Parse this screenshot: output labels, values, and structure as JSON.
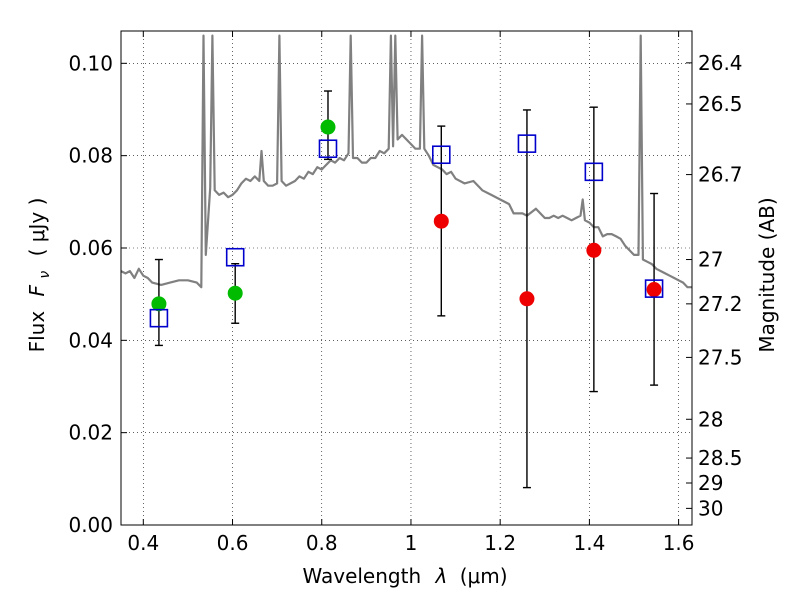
{
  "chart_data": {
    "type": "scatter",
    "xlabel": "Wavelength",
    "xlabel_symbol": "λ",
    "xlabel_unit": "(μm)",
    "ylabel": "Flux",
    "ylabel_symbol": "F",
    "ylabel_subscript": "ν",
    "ylabel_unit": "( μJy )",
    "y2label": "Magnitude (AB)",
    "xlim": [
      0.35,
      1.63
    ],
    "ylim": [
      0.0,
      0.107
    ],
    "grid": true,
    "x_ticks": [
      0.4,
      0.6,
      0.8,
      1.0,
      1.2,
      1.4,
      1.6
    ],
    "x_tick_labels": [
      "0.4",
      "0.6",
      "0.8",
      "1",
      "1.2",
      "1.4",
      "1.6"
    ],
    "y_ticks": [
      0.0,
      0.02,
      0.04,
      0.06,
      0.08,
      0.1
    ],
    "y_tick_labels": [
      "0.00",
      "0.02",
      "0.04",
      "0.06",
      "0.08",
      "0.10"
    ],
    "mag_ticks": [
      {
        "label": "26.4",
        "flux": 0.1001
      },
      {
        "label": "26.5",
        "flux": 0.0912
      },
      {
        "label": "26.7",
        "flux": 0.0759
      },
      {
        "label": "27",
        "flux": 0.0575
      },
      {
        "label": "27.2",
        "flux": 0.0479
      },
      {
        "label": "27.5",
        "flux": 0.0363
      },
      {
        "label": "28",
        "flux": 0.0229
      },
      {
        "label": "28.5",
        "flux": 0.0145
      },
      {
        "label": "29",
        "flux": 0.0091
      },
      {
        "label": "30",
        "flux": 0.0036
      }
    ],
    "model_spectrum": {
      "color": "#808080",
      "points": [
        [
          0.35,
          0.055
        ],
        [
          0.36,
          0.0545
        ],
        [
          0.37,
          0.055
        ],
        [
          0.38,
          0.0535
        ],
        [
          0.39,
          0.0555
        ],
        [
          0.4,
          0.054
        ],
        [
          0.41,
          0.0535
        ],
        [
          0.42,
          0.0525
        ],
        [
          0.44,
          0.052
        ],
        [
          0.46,
          0.0525
        ],
        [
          0.48,
          0.053
        ],
        [
          0.5,
          0.053
        ],
        [
          0.52,
          0.0525
        ],
        [
          0.53,
          0.0515
        ],
        [
          0.535,
          0.106
        ],
        [
          0.54,
          0.0585
        ],
        [
          0.55,
          0.073
        ],
        [
          0.555,
          0.106
        ],
        [
          0.56,
          0.0725
        ],
        [
          0.57,
          0.0715
        ],
        [
          0.58,
          0.072
        ],
        [
          0.59,
          0.071
        ],
        [
          0.6,
          0.0715
        ],
        [
          0.61,
          0.0725
        ],
        [
          0.62,
          0.074
        ],
        [
          0.63,
          0.075
        ],
        [
          0.64,
          0.0745
        ],
        [
          0.65,
          0.0755
        ],
        [
          0.66,
          0.0745
        ],
        [
          0.665,
          0.081
        ],
        [
          0.67,
          0.0745
        ],
        [
          0.68,
          0.0735
        ],
        [
          0.69,
          0.0735
        ],
        [
          0.7,
          0.074
        ],
        [
          0.705,
          0.106
        ],
        [
          0.71,
          0.0745
        ],
        [
          0.72,
          0.0735
        ],
        [
          0.73,
          0.074
        ],
        [
          0.74,
          0.0745
        ],
        [
          0.75,
          0.0755
        ],
        [
          0.76,
          0.075
        ],
        [
          0.77,
          0.0765
        ],
        [
          0.78,
          0.076
        ],
        [
          0.79,
          0.0775
        ],
        [
          0.8,
          0.077
        ],
        [
          0.81,
          0.078
        ],
        [
          0.82,
          0.079
        ],
        [
          0.83,
          0.0785
        ],
        [
          0.84,
          0.0795
        ],
        [
          0.85,
          0.079
        ],
        [
          0.86,
          0.0805
        ],
        [
          0.865,
          0.106
        ],
        [
          0.87,
          0.0795
        ],
        [
          0.88,
          0.0795
        ],
        [
          0.89,
          0.0785
        ],
        [
          0.9,
          0.0785
        ],
        [
          0.91,
          0.0795
        ],
        [
          0.92,
          0.0795
        ],
        [
          0.93,
          0.081
        ],
        [
          0.94,
          0.0805
        ],
        [
          0.95,
          0.0815
        ],
        [
          0.955,
          0.106
        ],
        [
          0.96,
          0.082
        ],
        [
          0.965,
          0.106
        ],
        [
          0.97,
          0.0835
        ],
        [
          0.98,
          0.0845
        ],
        [
          0.99,
          0.0835
        ],
        [
          1.0,
          0.0825
        ],
        [
          1.01,
          0.0815
        ],
        [
          1.02,
          0.0815
        ],
        [
          1.025,
          0.106
        ],
        [
          1.03,
          0.0815
        ],
        [
          1.04,
          0.08
        ],
        [
          1.05,
          0.078
        ],
        [
          1.06,
          0.0775
        ],
        [
          1.07,
          0.077
        ],
        [
          1.08,
          0.076
        ],
        [
          1.09,
          0.0765
        ],
        [
          1.1,
          0.075
        ],
        [
          1.12,
          0.074
        ],
        [
          1.14,
          0.0745
        ],
        [
          1.16,
          0.0725
        ],
        [
          1.18,
          0.0715
        ],
        [
          1.2,
          0.0705
        ],
        [
          1.22,
          0.0695
        ],
        [
          1.23,
          0.0675
        ],
        [
          1.25,
          0.0675
        ],
        [
          1.26,
          0.067
        ],
        [
          1.28,
          0.0685
        ],
        [
          1.3,
          0.0665
        ],
        [
          1.31,
          0.0665
        ],
        [
          1.32,
          0.067
        ],
        [
          1.33,
          0.0665
        ],
        [
          1.34,
          0.067
        ],
        [
          1.35,
          0.0665
        ],
        [
          1.36,
          0.066
        ],
        [
          1.37,
          0.0665
        ],
        [
          1.38,
          0.067
        ],
        [
          1.385,
          0.0705
        ],
        [
          1.39,
          0.066
        ],
        [
          1.4,
          0.0655
        ],
        [
          1.41,
          0.0645
        ],
        [
          1.42,
          0.0645
        ],
        [
          1.43,
          0.0625
        ],
        [
          1.44,
          0.063
        ],
        [
          1.45,
          0.063
        ],
        [
          1.46,
          0.0625
        ],
        [
          1.47,
          0.062
        ],
        [
          1.48,
          0.0605
        ],
        [
          1.49,
          0.0595
        ],
        [
          1.5,
          0.0585
        ],
        [
          1.51,
          0.0585
        ],
        [
          1.515,
          0.106
        ],
        [
          1.52,
          0.0575
        ],
        [
          1.53,
          0.057
        ],
        [
          1.54,
          0.0565
        ],
        [
          1.55,
          0.0555
        ],
        [
          1.56,
          0.055
        ],
        [
          1.57,
          0.0545
        ],
        [
          1.58,
          0.054
        ],
        [
          1.59,
          0.0535
        ],
        [
          1.6,
          0.053
        ],
        [
          1.61,
          0.0525
        ],
        [
          1.62,
          0.0515
        ],
        [
          1.63,
          0.0515
        ]
      ]
    },
    "model_photometry": {
      "marker": "open-square",
      "color": "#0000cc",
      "points": [
        {
          "x": 0.435,
          "y": 0.0448
        },
        {
          "x": 0.606,
          "y": 0.058
        },
        {
          "x": 0.814,
          "y": 0.0815
        },
        {
          "x": 1.068,
          "y": 0.0802
        },
        {
          "x": 1.26,
          "y": 0.0826
        },
        {
          "x": 1.41,
          "y": 0.0765
        },
        {
          "x": 1.545,
          "y": 0.0512
        }
      ]
    },
    "observed": [
      {
        "x": 0.435,
        "y": 0.0479,
        "err_low": 0.0389,
        "err_high": 0.0575,
        "color": "#00bb00"
      },
      {
        "x": 0.606,
        "y": 0.0502,
        "err_low": 0.0437,
        "err_high": 0.0566,
        "color": "#00bb00"
      },
      {
        "x": 0.814,
        "y": 0.0862,
        "err_low": 0.0792,
        "err_high": 0.094,
        "color": "#00bb00"
      },
      {
        "x": 1.068,
        "y": 0.0658,
        "err_low": 0.0453,
        "err_high": 0.0864,
        "color": "#ee0000"
      },
      {
        "x": 1.26,
        "y": 0.049,
        "err_low": 0.0081,
        "err_high": 0.0899,
        "color": "#ee0000"
      },
      {
        "x": 1.41,
        "y": 0.0595,
        "err_low": 0.0289,
        "err_high": 0.0905,
        "color": "#ee0000"
      },
      {
        "x": 1.545,
        "y": 0.051,
        "err_low": 0.0303,
        "err_high": 0.0718,
        "color": "#ee0000"
      }
    ]
  }
}
